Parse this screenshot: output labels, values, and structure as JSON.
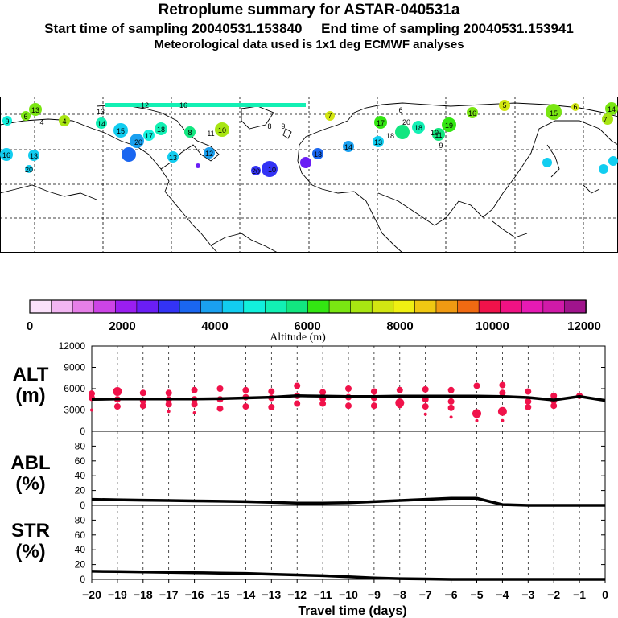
{
  "header": {
    "title": "Retroplume summary for ASTAR-040531a",
    "start_label": "Start time of sampling 20040531.153840",
    "end_label": "End time of sampling 20040531.153941",
    "met_label": "Meteorological data used is 1x1 deg ECMWF analyses"
  },
  "map": {
    "description_labels": [
      "9",
      "6",
      "13",
      "4",
      "4",
      "14",
      "12",
      "15",
      "10",
      "19",
      "18",
      "10",
      "17",
      "20",
      "18",
      "11",
      "8",
      "13",
      "12",
      "16",
      "13",
      "20",
      "20",
      "16",
      "14",
      "13",
      "13",
      "13",
      "17",
      "20",
      "18",
      "16",
      "11",
      "10",
      "9",
      "9",
      "8",
      "7",
      "6",
      "5",
      "15",
      "6",
      "14",
      "7"
    ]
  },
  "colorbar": {
    "ticks": [
      "0",
      "2000",
      "4000",
      "6000",
      "8000",
      "10000",
      "12000"
    ],
    "label": "Altitude (m)",
    "colors": [
      "#fbe1fb",
      "#f2b6f2",
      "#e67fe8",
      "#cc44e6",
      "#9a1ef0",
      "#6a1ef5",
      "#3333f5",
      "#1a66f0",
      "#1aa0f0",
      "#12cdf0",
      "#12f0dc",
      "#12f0b4",
      "#12e680",
      "#33e612",
      "#7ae612",
      "#a8e612",
      "#d2e612",
      "#f0f012",
      "#f0c812",
      "#f09a12",
      "#f06a12",
      "#f0124a",
      "#f01284",
      "#e61ab4",
      "#d01aa8",
      "#a0148c"
    ]
  },
  "chart_data": [
    {
      "type": "line",
      "title": "ALT (m)",
      "ylabel": "ALT\n(m)",
      "ylabel_lines": [
        "ALT",
        "(m)"
      ],
      "ylim": [
        0,
        12000
      ],
      "yticks": [
        "0",
        "3000",
        "6000",
        "9000",
        "12000"
      ],
      "x": [
        -20,
        -19,
        -18,
        -17,
        -16,
        -15,
        -14,
        -13,
        -12,
        -11,
        -10,
        -9,
        -8,
        -7,
        -6,
        -5,
        -4,
        -3,
        -2,
        -1,
        0
      ],
      "series": [
        {
          "name": "mean altitude",
          "values": [
            4500,
            4550,
            4550,
            4550,
            4550,
            4600,
            4700,
            4800,
            5000,
            4950,
            4900,
            4900,
            4950,
            4950,
            4950,
            4950,
            4900,
            4750,
            4400,
            4900,
            4350
          ]
        }
      ],
      "points_color": "#f0124a",
      "points": [
        {
          "x": -20,
          "y": 5300,
          "s": 2
        },
        {
          "x": -20,
          "y": 4700,
          "s": 2
        },
        {
          "x": -20,
          "y": 3000,
          "s": 1
        },
        {
          "x": -19,
          "y": 5600,
          "s": 3
        },
        {
          "x": -19,
          "y": 4500,
          "s": 2
        },
        {
          "x": -19,
          "y": 3500,
          "s": 2
        },
        {
          "x": -18,
          "y": 5400,
          "s": 2
        },
        {
          "x": -18,
          "y": 4300,
          "s": 2
        },
        {
          "x": -18,
          "y": 3600,
          "s": 2
        },
        {
          "x": -17,
          "y": 5400,
          "s": 2
        },
        {
          "x": -17,
          "y": 4500,
          "s": 2
        },
        {
          "x": -17,
          "y": 3800,
          "s": 2
        },
        {
          "x": -17,
          "y": 2800,
          "s": 1
        },
        {
          "x": -16,
          "y": 5800,
          "s": 2
        },
        {
          "x": -16,
          "y": 4500,
          "s": 2
        },
        {
          "x": -16,
          "y": 3800,
          "s": 2
        },
        {
          "x": -16,
          "y": 2600,
          "s": 1
        },
        {
          "x": -15,
          "y": 6000,
          "s": 2
        },
        {
          "x": -15,
          "y": 4500,
          "s": 2
        },
        {
          "x": -15,
          "y": 3200,
          "s": 2
        },
        {
          "x": -14,
          "y": 5800,
          "s": 2
        },
        {
          "x": -14,
          "y": 4800,
          "s": 2
        },
        {
          "x": -14,
          "y": 3500,
          "s": 2
        },
        {
          "x": -13,
          "y": 5600,
          "s": 2
        },
        {
          "x": -13,
          "y": 4700,
          "s": 2
        },
        {
          "x": -13,
          "y": 3400,
          "s": 2
        },
        {
          "x": -12,
          "y": 6400,
          "s": 2
        },
        {
          "x": -12,
          "y": 5000,
          "s": 2
        },
        {
          "x": -12,
          "y": 3900,
          "s": 2
        },
        {
          "x": -11,
          "y": 5500,
          "s": 2
        },
        {
          "x": -11,
          "y": 4600,
          "s": 2
        },
        {
          "x": -11,
          "y": 3900,
          "s": 2
        },
        {
          "x": -10,
          "y": 6000,
          "s": 2
        },
        {
          "x": -10,
          "y": 4800,
          "s": 2
        },
        {
          "x": -10,
          "y": 3600,
          "s": 2
        },
        {
          "x": -9,
          "y": 5600,
          "s": 2
        },
        {
          "x": -9,
          "y": 4700,
          "s": 2
        },
        {
          "x": -9,
          "y": 3600,
          "s": 2
        },
        {
          "x": -8,
          "y": 5800,
          "s": 2
        },
        {
          "x": -8,
          "y": 4000,
          "s": 3
        },
        {
          "x": -8,
          "y": 3700,
          "s": 2
        },
        {
          "x": -7,
          "y": 5900,
          "s": 2
        },
        {
          "x": -7,
          "y": 4500,
          "s": 2
        },
        {
          "x": -7,
          "y": 3500,
          "s": 2
        },
        {
          "x": -7,
          "y": 2400,
          "s": 1
        },
        {
          "x": -6,
          "y": 5800,
          "s": 2
        },
        {
          "x": -6,
          "y": 4200,
          "s": 2
        },
        {
          "x": -6,
          "y": 3300,
          "s": 2
        },
        {
          "x": -6,
          "y": 2000,
          "s": 1
        },
        {
          "x": -5,
          "y": 6400,
          "s": 2
        },
        {
          "x": -5,
          "y": 2500,
          "s": 3
        },
        {
          "x": -5,
          "y": 1500,
          "s": 1
        },
        {
          "x": -4,
          "y": 6500,
          "s": 2
        },
        {
          "x": -4,
          "y": 5400,
          "s": 2
        },
        {
          "x": -4,
          "y": 2800,
          "s": 3
        },
        {
          "x": -4,
          "y": 1500,
          "s": 1
        },
        {
          "x": -3,
          "y": 5600,
          "s": 2
        },
        {
          "x": -3,
          "y": 4200,
          "s": 2
        },
        {
          "x": -3,
          "y": 3400,
          "s": 2
        },
        {
          "x": -2,
          "y": 5000,
          "s": 2
        },
        {
          "x": -2,
          "y": 4300,
          "s": 2
        },
        {
          "x": -2,
          "y": 3600,
          "s": 2
        },
        {
          "x": -1,
          "y": 5000,
          "s": 2
        }
      ]
    },
    {
      "type": "line",
      "title": "ABL (%)",
      "ylabel_lines": [
        "ABL",
        "(%)"
      ],
      "ylim": [
        0,
        100
      ],
      "yticks": [
        "0",
        "20",
        "40",
        "60",
        "80"
      ],
      "x": [
        -20,
        -19,
        -18,
        -17,
        -16,
        -15,
        -14,
        -13,
        -12,
        -11,
        -10,
        -9,
        -8,
        -7,
        -6,
        -5,
        -4,
        -3,
        -2,
        -1,
        0
      ],
      "series": [
        {
          "name": "ABL fraction",
          "values": [
            8,
            7.5,
            7,
            6.5,
            6,
            5.5,
            5,
            4,
            3,
            3,
            3.5,
            5,
            6.5,
            8,
            9.5,
            9.5,
            1,
            0,
            0,
            0,
            0
          ]
        }
      ]
    },
    {
      "type": "line",
      "title": "STR (%)",
      "ylabel_lines": [
        "STR",
        "(%)"
      ],
      "ylim": [
        0,
        100
      ],
      "yticks": [
        "0",
        "20",
        "40",
        "60",
        "80"
      ],
      "x": [
        -20,
        -19,
        -18,
        -17,
        -16,
        -15,
        -14,
        -13,
        -12,
        -11,
        -10,
        -9,
        -8,
        -7,
        -6,
        -5,
        -4,
        -3,
        -2,
        -1,
        0
      ],
      "series": [
        {
          "name": "stratospheric fraction",
          "values": [
            11,
            10.5,
            10,
            9.5,
            9,
            8.5,
            8,
            7,
            6,
            5,
            3.5,
            2,
            1,
            0.5,
            0,
            0,
            0,
            0,
            0,
            0,
            0
          ]
        }
      ]
    }
  ],
  "xaxis": {
    "ticks": [
      "−20",
      "−19",
      "−18",
      "−17",
      "−16",
      "−15",
      "−14",
      "−13",
      "−12",
      "−11",
      "−10",
      "−9",
      "−8",
      "−7",
      "−6",
      "−5",
      "−4",
      "−3",
      "−2",
      "−1",
      "0"
    ],
    "label": "Travel time (days)"
  }
}
